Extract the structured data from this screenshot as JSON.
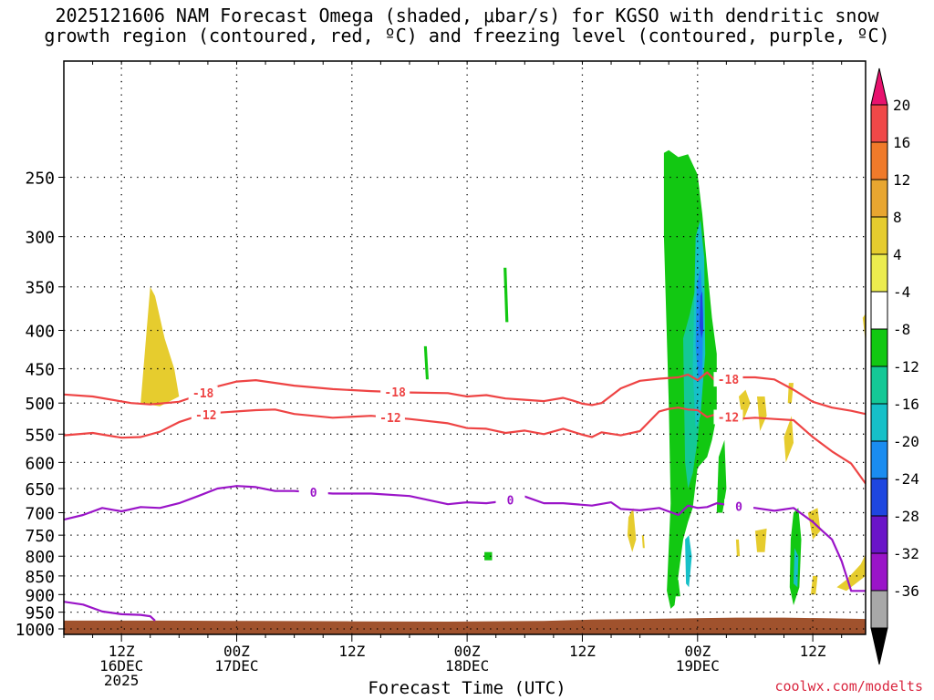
{
  "title": {
    "line1": "2025121606 NAM Forecast Omega (shaded, μbar/s) for KGSO with dendritic snow",
    "line2": "growth region (contoured, red, ºC) and freezing level (contoured, purple, ºC)"
  },
  "credit": "coolwx.com/modelts",
  "chart_data": {
    "type": "time-height cross-section",
    "xlabel": "Forecast Time (UTC)",
    "x_ticks": [
      {
        "lines": [
          "12Z",
          "16DEC",
          "2025"
        ],
        "hour": 6
      },
      {
        "lines": [
          "00Z",
          "17DEC"
        ],
        "hour": 18
      },
      {
        "lines": [
          "12Z"
        ],
        "hour": 30
      },
      {
        "lines": [
          "00Z",
          "18DEC"
        ],
        "hour": 42
      },
      {
        "lines": [
          "12Z"
        ],
        "hour": 54
      },
      {
        "lines": [
          "00Z",
          "19DEC"
        ],
        "hour": 66
      },
      {
        "lines": [
          "12Z"
        ],
        "hour": 78
      }
    ],
    "xlim": [
      0,
      83.5
    ],
    "y_ticks": [
      250,
      300,
      350,
      400,
      450,
      500,
      550,
      600,
      650,
      700,
      750,
      800,
      850,
      900,
      950,
      1000
    ],
    "ylim_hpa": [
      175,
      1017
    ],
    "y_scale": "log",
    "grid": true,
    "colorbar": {
      "labels": [
        20,
        16,
        12,
        8,
        4,
        -4,
        -8,
        -12,
        -16,
        -20,
        -24,
        -28,
        -32,
        -36
      ],
      "bins": [
        {
          "color": "#e8126e"
        },
        {
          "color": "#f04848"
        },
        {
          "color": "#f07a2a"
        },
        {
          "color": "#e8a630"
        },
        {
          "color": "#e6cc2e"
        },
        {
          "color": "#ecec4e"
        },
        {
          "color": "#ffffff"
        },
        {
          "color": "#12c812"
        },
        {
          "color": "#14c896"
        },
        {
          "color": "#16c0c8"
        },
        {
          "color": "#1a8cf0"
        },
        {
          "color": "#1e46e0"
        },
        {
          "color": "#6a14c8"
        },
        {
          "color": "#9a14c8"
        },
        {
          "color": "#a8a8a8"
        },
        {
          "color": "#000000"
        }
      ]
    },
    "contours": [
      {
        "label": "-18",
        "color": "#ee4444",
        "x": [
          0,
          3,
          7,
          9,
          12,
          14,
          16,
          18,
          20,
          24,
          28,
          32,
          36,
          40,
          42,
          44,
          46,
          48,
          50,
          52,
          53,
          54,
          55,
          56,
          58,
          60,
          62,
          64,
          65,
          66,
          67,
          68,
          70,
          72,
          74,
          76,
          78,
          80,
          82,
          83.5
        ],
        "p": [
          487,
          490,
          500,
          502,
          498,
          488,
          475,
          468,
          466,
          474,
          479,
          482,
          484,
          485,
          490,
          488,
          493,
          495,
          497,
          492,
          496,
          501,
          503,
          500,
          478,
          467,
          464,
          462,
          458,
          466,
          455,
          469,
          462,
          462,
          465,
          480,
          498,
          507,
          512,
          517
        ]
      },
      {
        "label": "-12",
        "color": "#ee4444",
        "x": [
          0,
          3,
          6,
          8,
          10,
          12,
          14,
          16,
          18,
          20,
          22,
          24,
          28,
          32,
          36,
          40,
          42,
          44,
          46,
          48,
          50,
          52,
          54,
          55,
          56,
          58,
          60,
          62,
          63,
          64,
          65,
          66,
          67,
          68,
          70,
          72,
          74,
          76,
          78,
          80,
          82,
          83.5
        ],
        "p": [
          552,
          548,
          556,
          555,
          546,
          530,
          520,
          515,
          513,
          511,
          510,
          517,
          523,
          520,
          525,
          532,
          540,
          541,
          548,
          544,
          550,
          541,
          551,
          555,
          547,
          552,
          545,
          513,
          509,
          507,
          510,
          511,
          522,
          517,
          525,
          523,
          525,
          527,
          555,
          580,
          602,
          640
        ]
      },
      {
        "label": "0",
        "color": "#9a14c8",
        "x": [
          0,
          2,
          4,
          6,
          8,
          10,
          12,
          14,
          16,
          18,
          20,
          22,
          24,
          28,
          32,
          36,
          40,
          42,
          44,
          46,
          48,
          50,
          52,
          55,
          57,
          58,
          60,
          62,
          64,
          65,
          66,
          67,
          68,
          70,
          72,
          74,
          76,
          78,
          79,
          80,
          81,
          82,
          83.5
        ],
        "p": [
          715,
          705,
          690,
          697,
          688,
          690,
          680,
          665,
          650,
          645,
          647,
          655,
          655,
          660,
          660,
          665,
          682,
          678,
          680,
          675,
          666,
          680,
          680,
          685,
          678,
          692,
          695,
          690,
          705,
          685,
          690,
          688,
          680,
          686,
          690,
          696,
          690,
          720,
          740,
          760,
          812,
          890,
          890
        ]
      },
      {
        "label": "0",
        "color": "#9a14c8",
        "x": [
          0,
          2,
          4,
          6,
          8,
          9,
          9.5
        ],
        "p": [
          920,
          928,
          948,
          956,
          958,
          962,
          975
        ]
      }
    ],
    "omega_cells": [
      {
        "color": "#e6cc2e",
        "x": [
          8,
          9,
          9.5,
          10.5,
          11.5,
          12,
          10,
          8
        ],
        "p": [
          500,
          350,
          360,
          410,
          450,
          490,
          505,
          500
        ]
      },
      {
        "color": "#12c812",
        "x": [
          37.5,
          37.8,
          38,
          37.7
        ],
        "p": [
          420,
          420,
          465,
          465
        ]
      },
      {
        "color": "#12c812",
        "x": [
          45.8,
          46.1,
          46.3,
          46
        ],
        "p": [
          330,
          330,
          390,
          390
        ]
      },
      {
        "color": "#12c812",
        "x": [
          43.8,
          44.6,
          44.6,
          43.8
        ],
        "p": [
          790,
          790,
          810,
          810
        ]
      },
      {
        "color": "#12c812",
        "x": [
          62.5,
          63,
          64,
          65,
          66,
          66.5,
          67,
          67.5,
          68,
          68,
          67.5,
          67,
          66,
          65.5,
          65,
          64.5,
          64,
          63.6,
          63.2,
          62.8,
          63.2,
          63,
          62.5
        ],
        "p": [
          232,
          230,
          235,
          233,
          248,
          280,
          330,
          385,
          430,
          520,
          560,
          590,
          610,
          690,
          720,
          760,
          850,
          930,
          940,
          890,
          680,
          500,
          300
        ]
      },
      {
        "color": "#14c896",
        "x": [
          64.5,
          65.2,
          65.8,
          66.3,
          66.5,
          66,
          65.5,
          65,
          64.7
        ],
        "p": [
          410,
          380,
          350,
          370,
          480,
          560,
          620,
          650,
          600
        ]
      },
      {
        "color": "#16c0c8",
        "x": [
          65.8,
          66.3,
          66.7,
          66.8,
          66.3,
          65.8,
          65.5
        ],
        "p": [
          300,
          285,
          320,
          430,
          520,
          540,
          450
        ]
      },
      {
        "color": "#1a8cf0",
        "x": [
          65.9,
          66.3,
          66.6,
          66.5,
          66.1,
          65.8
        ],
        "p": [
          350,
          330,
          380,
          460,
          470,
          420
        ]
      },
      {
        "color": "#1e46e0",
        "x": [
          66.3,
          66.5,
          66.6,
          66.4,
          66.2
        ],
        "p": [
          360,
          355,
          400,
          410,
          395
        ]
      },
      {
        "color": "#16c0c8",
        "x": [
          64.7,
          65.1,
          65.4,
          65.1,
          64.8
        ],
        "p": [
          760,
          750,
          800,
          880,
          870
        ]
      },
      {
        "color": "#12c812",
        "x": [
          68.2,
          68.8,
          69,
          68.6,
          68
        ],
        "p": [
          590,
          560,
          650,
          700,
          700
        ]
      },
      {
        "color": "#12c812",
        "x": [
          63.5,
          64,
          64.2,
          63.7
        ],
        "p": [
          860,
          860,
          905,
          905
        ]
      },
      {
        "color": "#e6cc2e",
        "x": [
          58.8,
          59.3,
          59.6,
          59.2,
          58.7
        ],
        "p": [
          710,
          690,
          760,
          790,
          750
        ]
      },
      {
        "color": "#e6cc2e",
        "x": [
          70.3,
          71,
          71.5,
          70.7
        ],
        "p": [
          490,
          480,
          500,
          530
        ]
      },
      {
        "color": "#e6cc2e",
        "x": [
          72.2,
          73,
          73.2,
          72.5
        ],
        "p": [
          490,
          490,
          520,
          545
        ]
      },
      {
        "color": "#e6cc2e",
        "x": [
          75,
          75.8,
          76,
          75.2
        ],
        "p": [
          555,
          520,
          565,
          600
        ]
      },
      {
        "color": "#e6cc2e",
        "x": [
          72,
          73.2,
          73,
          72.2
        ],
        "p": [
          740,
          735,
          790,
          790
        ]
      },
      {
        "color": "#e6cc2e",
        "x": [
          70,
          70.3,
          70.4,
          70.1
        ],
        "p": [
          760,
          760,
          800,
          800
        ]
      },
      {
        "color": "#12c812",
        "x": [
          76,
          76.5,
          76.8,
          76.6,
          76,
          75.6,
          75.7
        ],
        "p": [
          700,
          690,
          760,
          880,
          930,
          880,
          760
        ]
      },
      {
        "color": "#16c0c8",
        "x": [
          76.1,
          76.5,
          76.4,
          76
        ],
        "p": [
          780,
          800,
          880,
          870
        ]
      },
      {
        "color": "#e6cc2e",
        "x": [
          77.5,
          78.5,
          78.8,
          78
        ],
        "p": [
          700,
          690,
          740,
          760
        ]
      },
      {
        "color": "#e6cc2e",
        "x": [
          78,
          78.5,
          78.3,
          77.8
        ],
        "p": [
          850,
          850,
          900,
          900
        ]
      },
      {
        "color": "#e6cc2e",
        "x": [
          80.5,
          81.5,
          83,
          83.5,
          83.5,
          81.5
        ],
        "p": [
          880,
          860,
          820,
          795,
          850,
          890
        ]
      },
      {
        "color": "#e6cc2e",
        "x": [
          83.2,
          83.5,
          83.5
        ],
        "p": [
          385,
          380,
          415
        ]
      },
      {
        "color": "#e6cc2e",
        "x": [
          75.5,
          76,
          75.8,
          75.4
        ],
        "p": [
          470,
          470,
          500,
          500
        ]
      },
      {
        "color": "#e6cc2e",
        "x": [
          60.2,
          60.4,
          60.5,
          60.3
        ],
        "p": [
          750,
          750,
          780,
          780
        ]
      }
    ],
    "ground": {
      "color": "#a0522d",
      "x": [
        0,
        10,
        20,
        30,
        40,
        50,
        55,
        60,
        65,
        70,
        75,
        80,
        83.5
      ],
      "p": [
        975,
        975,
        976,
        977,
        978,
        976,
        972,
        970,
        968,
        966,
        966,
        968,
        970
      ]
    }
  }
}
